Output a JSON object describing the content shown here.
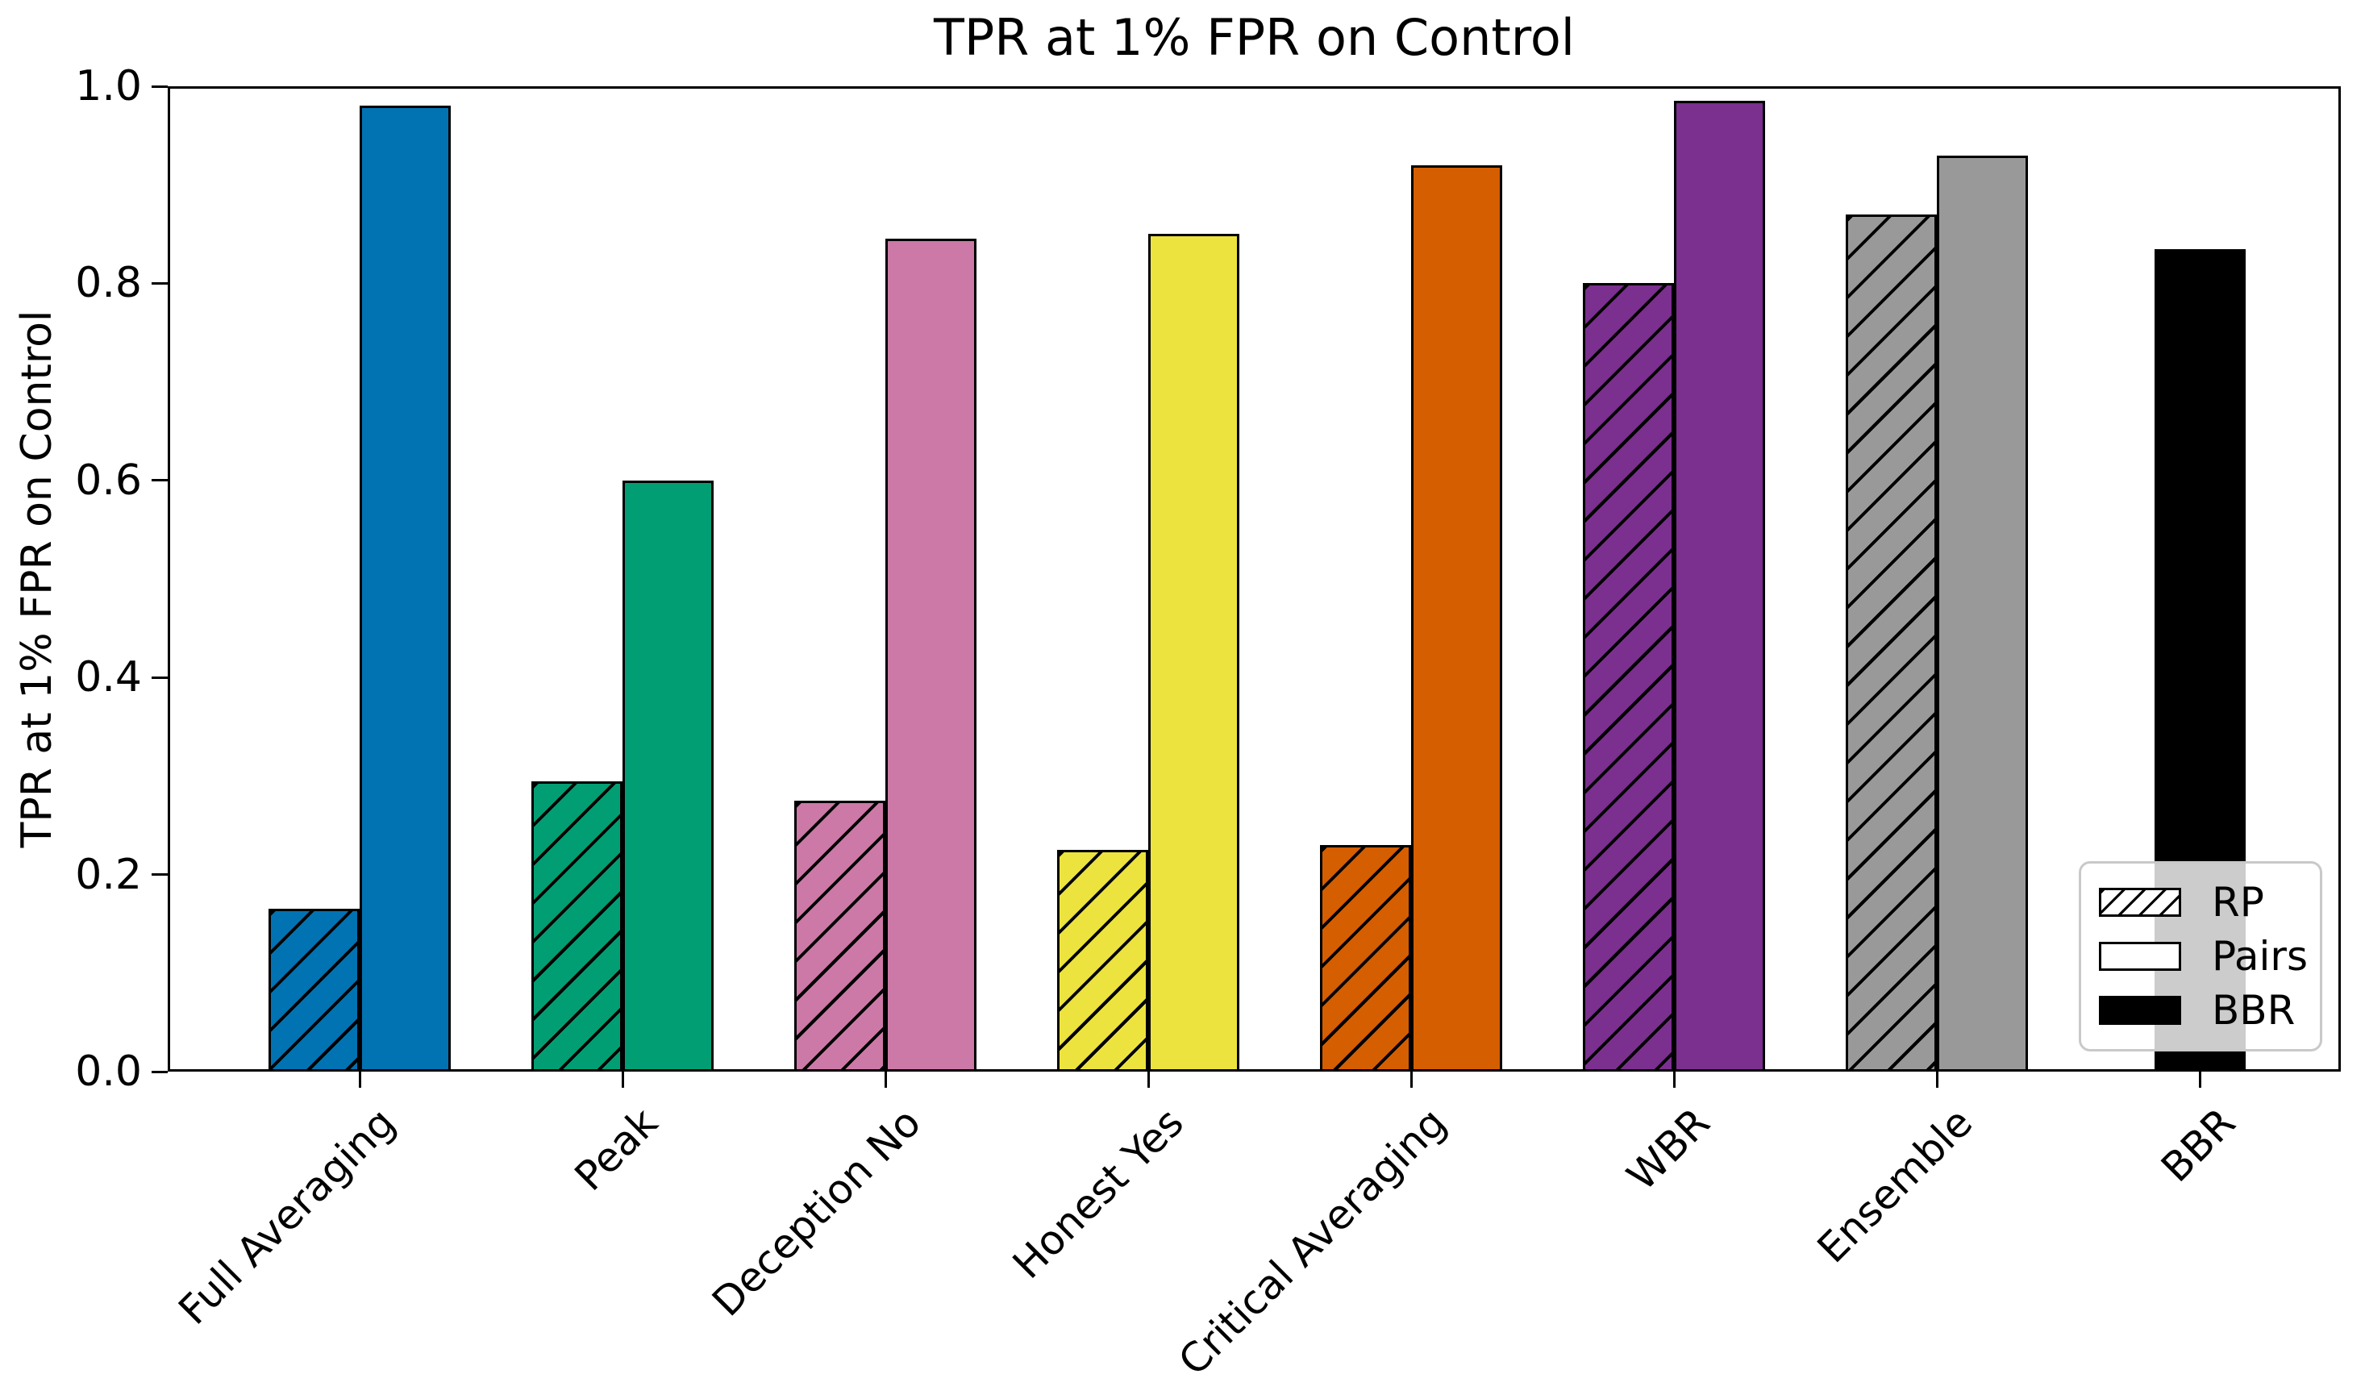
{
  "title": "TPR at 1% FPR on Control",
  "y_axis": {
    "label": "TPR at 1% FPR on Control",
    "tick_labels": [
      "0.0",
      "0.2",
      "0.4",
      "0.6",
      "0.8",
      "1.0"
    ]
  },
  "chart_data": {
    "type": "bar",
    "title": "TPR at 1% FPR on Control",
    "xlabel": "",
    "ylabel": "TPR at 1% FPR on Control",
    "ylim": [
      0.0,
      1.0
    ],
    "yticks": [
      0.0,
      0.2,
      0.4,
      0.6,
      0.8,
      1.0
    ],
    "grid": false,
    "legend_position": "lower right",
    "categories": [
      "Full Averaging",
      "Peak",
      "Deception No",
      "Honest Yes",
      "Critical Averaging",
      "WBR",
      "Ensemble",
      "BBR"
    ],
    "category_colors": [
      "#0173b2",
      "#029e73",
      "#cc79a7",
      "#ece33e",
      "#d55e00",
      "#7b2f8e",
      "#999999",
      "#000000"
    ],
    "series": [
      {
        "name": "RP",
        "swatch": "hatched",
        "values": [
          0.165,
          0.295,
          0.275,
          0.225,
          0.23,
          0.8,
          0.87,
          null
        ]
      },
      {
        "name": "Pairs",
        "swatch": "open",
        "values": [
          0.98,
          0.6,
          0.845,
          0.85,
          0.92,
          0.985,
          0.93,
          null
        ]
      },
      {
        "name": "BBR",
        "swatch": "filled-black",
        "values": [
          null,
          null,
          null,
          null,
          null,
          null,
          null,
          0.835
        ]
      }
    ],
    "legend": [
      {
        "label": "RP"
      },
      {
        "label": "Pairs"
      },
      {
        "label": "BBR"
      }
    ]
  }
}
